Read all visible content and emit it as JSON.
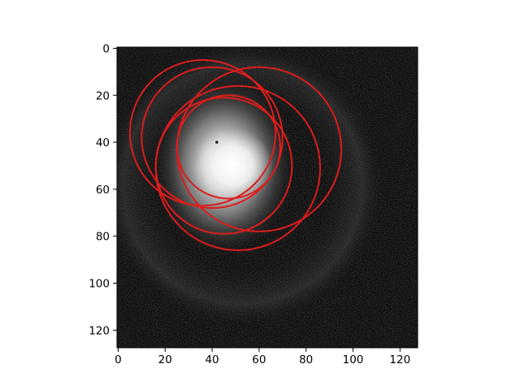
{
  "chart_data": {
    "type": "heatmap",
    "title": "",
    "xlabel": "",
    "ylabel": "",
    "image_size": [
      128,
      128
    ],
    "xlim": [
      -0.5,
      127.5
    ],
    "ylim": [
      127.5,
      -0.5
    ],
    "x_ticks": [
      0,
      20,
      40,
      60,
      80,
      100,
      120
    ],
    "y_ticks": [
      0,
      20,
      40,
      60,
      80,
      100,
      120
    ],
    "colormap": "gray",
    "grid": false,
    "annotations": {
      "shape": "circle",
      "color": "#dd1c1c",
      "circles": [
        {
          "cx": 36,
          "cy": 36,
          "r": 31
        },
        {
          "cx": 40,
          "cy": 38,
          "r": 30
        },
        {
          "cx": 60,
          "cy": 43,
          "r": 35
        },
        {
          "cx": 45,
          "cy": 50,
          "r": 29
        },
        {
          "cx": 51,
          "cy": 51,
          "r": 35
        },
        {
          "cx": 47,
          "cy": 42,
          "r": 22
        }
      ]
    },
    "marker": {
      "x": 42,
      "y": 40,
      "color": "#000000"
    },
    "blob": {
      "cx": 45,
      "cy": 50,
      "rx": 30,
      "ry": 38,
      "peak_x": 49,
      "peak_y": 50
    }
  }
}
